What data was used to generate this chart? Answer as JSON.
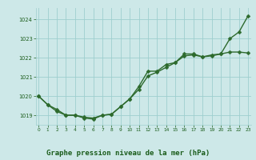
{
  "line1_smooth": {
    "x": [
      0,
      1,
      2,
      3,
      4,
      5,
      6,
      7,
      8,
      9,
      10,
      11,
      12,
      13,
      14,
      15,
      16,
      17,
      18,
      19,
      20,
      21,
      22,
      23
    ],
    "y": [
      1020.0,
      1019.55,
      1019.2,
      1019.0,
      1019.0,
      1018.85,
      1018.8,
      1019.0,
      1019.05,
      1019.45,
      1019.85,
      1020.35,
      1021.05,
      1021.25,
      1021.5,
      1021.75,
      1022.1,
      1022.15,
      1022.05,
      1022.15,
      1022.2,
      1023.0,
      1023.35,
      1024.2
    ]
  },
  "line2_markers": {
    "x": [
      0,
      1,
      2,
      3,
      4,
      5,
      6,
      7,
      8,
      9,
      10,
      11,
      12,
      13,
      14,
      15,
      16,
      17,
      18,
      19,
      20,
      21,
      22,
      23
    ],
    "y": [
      1020.0,
      1019.55,
      1019.3,
      1019.0,
      1019.0,
      1018.9,
      1018.85,
      1019.0,
      1019.05,
      1019.45,
      1019.85,
      1020.5,
      1021.3,
      1021.3,
      1021.65,
      1021.75,
      1022.2,
      1022.2,
      1022.05,
      1022.1,
      1022.2,
      1022.3,
      1022.3,
      1022.25
    ]
  },
  "line_color": "#2d6a2d",
  "markersize": 2.5,
  "bg_color": "#cde8e8",
  "grid_color": "#9ecece",
  "xlabel": "Graphe pression niveau de la mer (hPa)",
  "xlabel_color": "#1a5c1a",
  "tick_color": "#1a5c1a",
  "ylim": [
    1018.5,
    1024.6
  ],
  "xlim": [
    -0.3,
    23.3
  ],
  "yticks": [
    1019,
    1020,
    1021,
    1022,
    1023,
    1024
  ],
  "xticks": [
    0,
    1,
    2,
    3,
    4,
    5,
    6,
    7,
    8,
    9,
    10,
    11,
    12,
    13,
    14,
    15,
    16,
    17,
    18,
    19,
    20,
    21,
    22,
    23
  ],
  "figsize": [
    3.2,
    2.0
  ],
  "dpi": 100
}
